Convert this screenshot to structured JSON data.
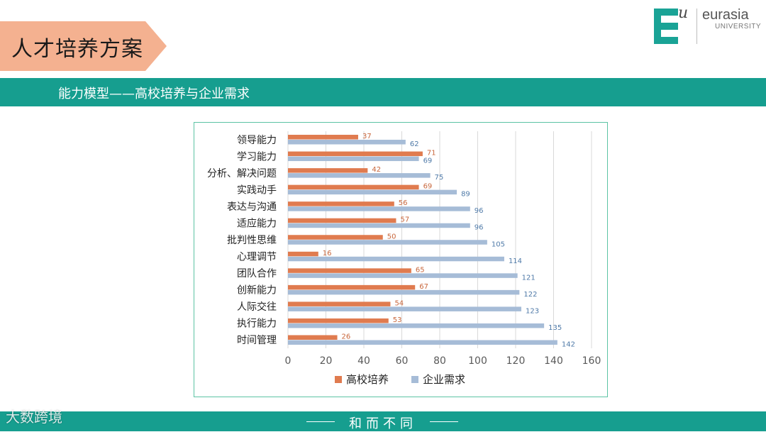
{
  "page": {
    "title": "人才培养方案",
    "subtitle": "能力模型——高校培养与企业需求",
    "footer_text": "和而不同",
    "watermark": "大数跨境"
  },
  "logo": {
    "mark_letter": "E",
    "superscript": "u",
    "name": "eurasia",
    "sub": "UNIVERSITY",
    "color": "#1aa396"
  },
  "chart_data": {
    "type": "bar",
    "orientation": "horizontal",
    "categories": [
      "领导能力",
      "学习能力",
      "分析、解决问题",
      "实践动手",
      "表达与沟通",
      "适应能力",
      "批判性思维",
      "心理调节",
      "团队合作",
      "创新能力",
      "人际交往",
      "执行能力",
      "时间管理"
    ],
    "series": [
      {
        "name": "高校培养",
        "color": "#e07b4f",
        "values": [
          37,
          71,
          42,
          69,
          56,
          57,
          50,
          16,
          65,
          67,
          54,
          53,
          26
        ]
      },
      {
        "name": "企业需求",
        "color": "#a6bcd7",
        "values": [
          62,
          69,
          75,
          89,
          96,
          96,
          105,
          114,
          121,
          122,
          123,
          135,
          142
        ]
      }
    ],
    "xlim": [
      0,
      160
    ],
    "xticks": [
      "0",
      "20",
      "40",
      "60",
      "80",
      "100",
      "120",
      "140",
      "160"
    ],
    "grid": true,
    "legend_position": "bottom",
    "data_labels": true
  }
}
